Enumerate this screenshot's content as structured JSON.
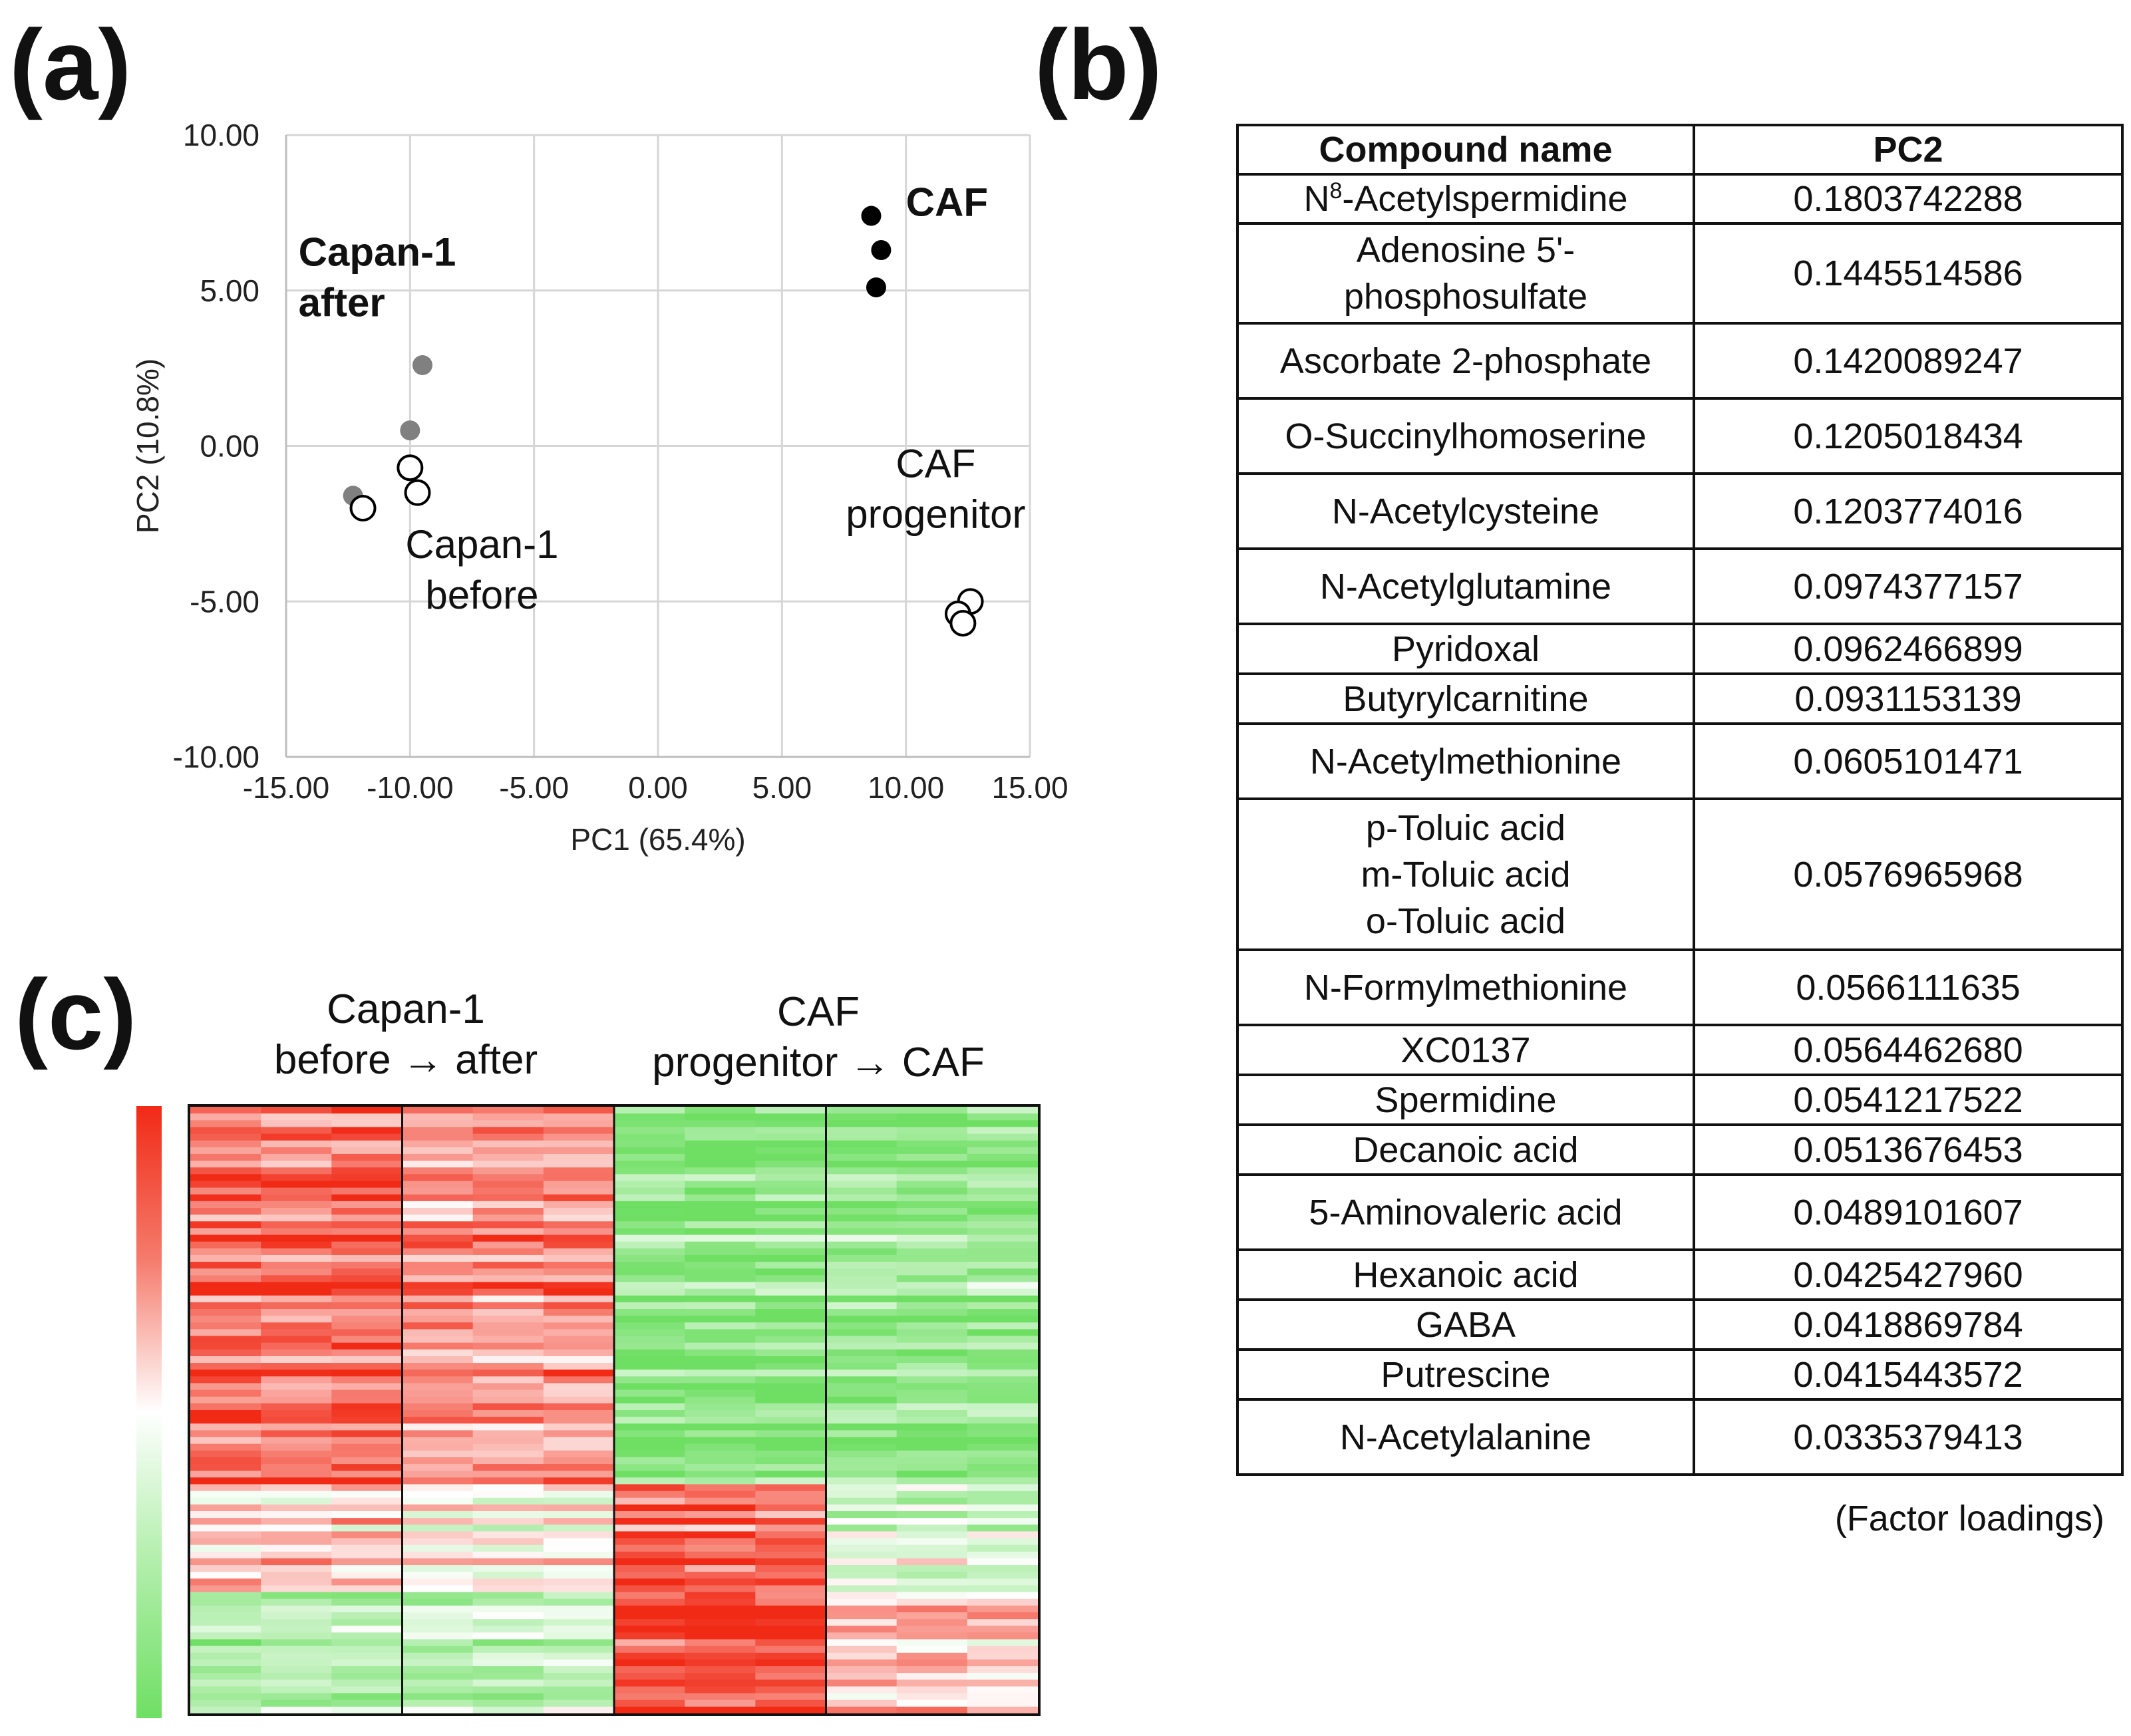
{
  "panels": {
    "a": "(a)",
    "b": "(b)",
    "c": "(c)"
  },
  "chart_data": [
    {
      "type": "scatter",
      "xlabel": "PC1 (65.4%)",
      "ylabel": "PC2 (10.8%)",
      "xlim": [
        -15,
        15
      ],
      "ylim": [
        -10,
        10
      ],
      "x_ticks": [
        "-15.00",
        "-10.00",
        "-5.00",
        "0.00",
        "5.00",
        "10.00",
        "15.00"
      ],
      "y_ticks": [
        "10.00",
        "5.00",
        "0.00",
        "-5.00",
        "-10.00"
      ],
      "grid": true,
      "series": [
        {
          "name": "Capan-1 after",
          "label_lines": [
            "Capan-1",
            "after"
          ],
          "style": "filled-gray",
          "bold": true,
          "x": [
            -9.5,
            -10.0,
            -12.3
          ],
          "y": [
            2.6,
            0.5,
            -1.6
          ]
        },
        {
          "name": "Capan-1 before",
          "label_lines": [
            "Capan-1",
            "before"
          ],
          "style": "open",
          "x": [
            -10.0,
            -9.7,
            -11.9
          ],
          "y": [
            -0.7,
            -1.5,
            -2.0
          ]
        },
        {
          "name": "CAF",
          "label_lines": [
            "CAF"
          ],
          "style": "filled-black",
          "bold": true,
          "x": [
            8.6,
            9.0,
            8.8
          ],
          "y": [
            7.4,
            6.3,
            5.1
          ]
        },
        {
          "name": "CAF progenitor",
          "label_lines": [
            "CAF",
            "progenitor"
          ],
          "style": "open",
          "x": [
            12.6,
            12.1,
            12.3
          ],
          "y": [
            -5.0,
            -5.4,
            -5.7
          ]
        }
      ]
    },
    {
      "type": "table",
      "columns": [
        "Compound  name",
        "PC2"
      ],
      "rows": [
        {
          "name_lines": [
            "N8-Acetylspermidine"
          ],
          "sup": "8",
          "value": "0.1803742288"
        },
        {
          "name_lines": [
            "Adenosine 5'-",
            "phosphosulfate"
          ],
          "value": "0.1445514586"
        },
        {
          "name_lines": [
            "Ascorbate 2-phosphate"
          ],
          "value": "0.1420089247"
        },
        {
          "name_lines": [
            "O-Succinylhomoserine"
          ],
          "value": "0.1205018434"
        },
        {
          "name_lines": [
            "N-Acetylcysteine"
          ],
          "value": "0.1203774016"
        },
        {
          "name_lines": [
            "N-Acetylglutamine"
          ],
          "value": "0.0974377157"
        },
        {
          "name_lines": [
            "Pyridoxal"
          ],
          "value": "0.0962466899"
        },
        {
          "name_lines": [
            "Butyrylcarnitine"
          ],
          "value": "0.0931153139"
        },
        {
          "name_lines": [
            "N-Acetylmethionine"
          ],
          "value": "0.0605101471"
        },
        {
          "name_lines": [
            "p-Toluic acid",
            "m-Toluic acid",
            "o-Toluic acid"
          ],
          "value": "0.0576965968"
        },
        {
          "name_lines": [
            "N-Formylmethionine"
          ],
          "value": "0.0566111635"
        },
        {
          "name_lines": [
            "XC0137"
          ],
          "value": "0.0564462680"
        },
        {
          "name_lines": [
            "Spermidine"
          ],
          "value": "0.0541217522"
        },
        {
          "name_lines": [
            "Decanoic acid"
          ],
          "value": "0.0513676453"
        },
        {
          "name_lines": [
            "5-Aminovaleric acid"
          ],
          "value": "0.0489101607"
        },
        {
          "name_lines": [
            "Hexanoic acid"
          ],
          "value": "0.0425427960"
        },
        {
          "name_lines": [
            "GABA"
          ],
          "value": "0.0418869784"
        },
        {
          "name_lines": [
            "Putrescine"
          ],
          "value": "0.0415443572"
        },
        {
          "name_lines": [
            "N-Acetylalanine"
          ],
          "value": "0.0335379413"
        }
      ],
      "note": "(Factor loadings)"
    },
    {
      "type": "heatmap",
      "groups": [
        {
          "label_lines": [
            "Capan-1",
            "before → after"
          ],
          "subgroups": [
            "Capan-1 before",
            "Capan-1 after"
          ]
        },
        {
          "label_lines": [
            "CAF",
            "progenitor  → CAF"
          ],
          "subgroups": [
            "CAF progenitor",
            "CAF"
          ]
        }
      ],
      "columns": 12,
      "rows": 90,
      "colorscale": {
        "high": "#f12a16",
        "mid": "#ffffff",
        "low": "#6fdf64"
      },
      "pattern": [
        {
          "row_range": [
            0.0,
            0.62
          ],
          "subgroup_bias": [
            0.75,
            0.55,
            -0.75,
            -0.65
          ]
        },
        {
          "row_range": [
            0.62,
            0.8
          ],
          "subgroup_bias": [
            0.25,
            0.05,
            0.7,
            -0.25
          ]
        },
        {
          "row_range": [
            0.8,
            1.0
          ],
          "subgroup_bias": [
            -0.55,
            -0.45,
            0.85,
            0.25
          ]
        }
      ]
    }
  ]
}
